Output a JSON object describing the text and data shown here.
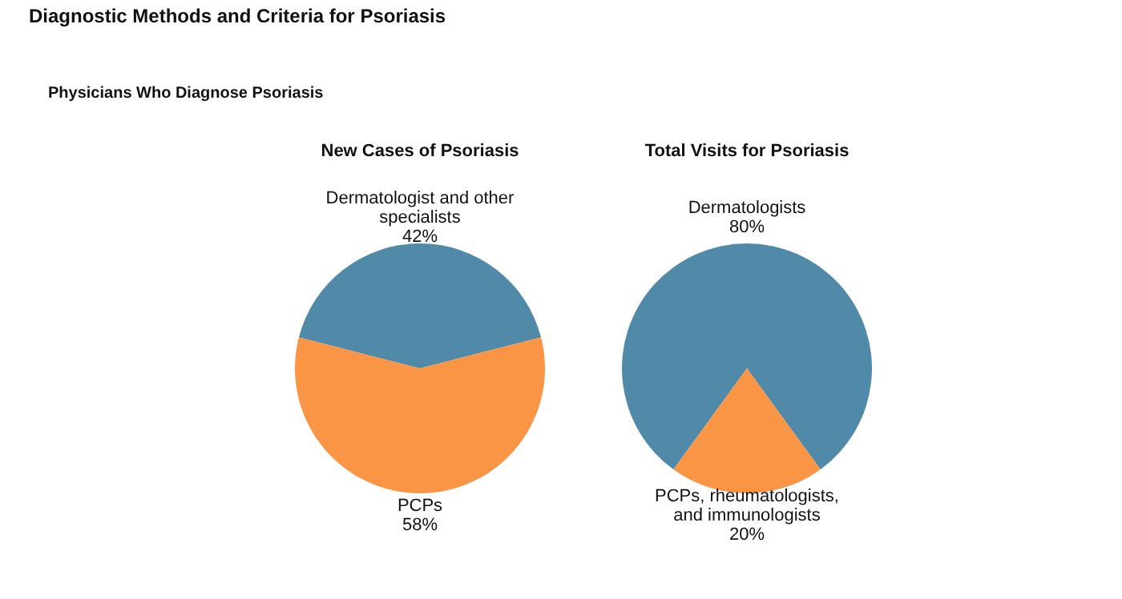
{
  "chart_data": [
    {
      "type": "pie",
      "title": "New Cases of Psoriasis",
      "annotations": [
        "Diagnostic Methods and Criteria for Psoriasis",
        "Physicians Who Diagnose Psoriasis"
      ],
      "categories": [
        "Dermatologist and other specialists",
        "PCPs"
      ],
      "values": [
        42,
        58
      ],
      "value_labels": [
        "42%",
        "58%"
      ],
      "colors": [
        "#508aa8",
        "#fb9546"
      ],
      "legend": false
    },
    {
      "type": "pie",
      "title": "Total Visits for Psoriasis",
      "categories": [
        "Dermatologists",
        "PCPs, rheumatologists, and immunologists"
      ],
      "values": [
        80,
        20
      ],
      "value_labels": [
        "80%",
        "20%"
      ],
      "colors": [
        "#508aa8",
        "#fb9546"
      ],
      "legend": false
    }
  ]
}
